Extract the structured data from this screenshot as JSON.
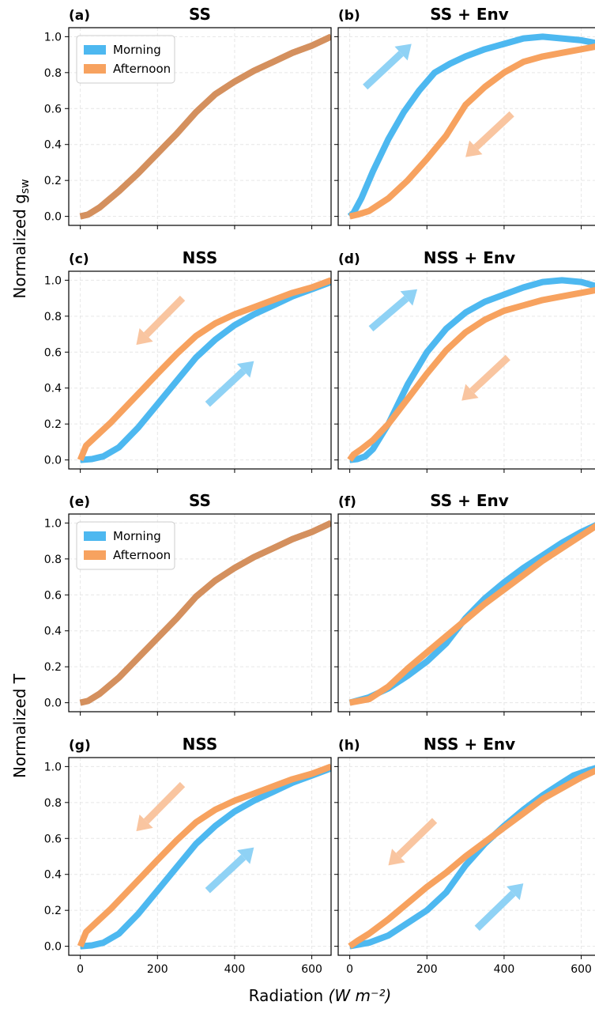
{
  "figure": {
    "xlabel": "Radiation",
    "xlabel_unit": "(W m⁻²)",
    "ylabel_top": "Normalized g",
    "ylabel_top_sub": "sw",
    "ylabel_bottom": "Normalized T"
  },
  "colors": {
    "morning": "#4db8f0",
    "afternoon": "#f7a25f",
    "overlap": "#d4905e",
    "arrow_morning": "#8fd2f5",
    "arrow_afternoon": "#f9c5a0"
  },
  "legend": {
    "morning": "Morning",
    "afternoon": "Afternoon",
    "placement": "upper-left"
  },
  "chart_data": [
    {
      "type": "line",
      "label": "(a)",
      "title": "SS",
      "legend": true,
      "overlap": true,
      "xlim": [
        -30,
        650
      ],
      "ylim": [
        -0.05,
        1.05
      ],
      "xticks": [
        0,
        200,
        400,
        600
      ],
      "yticks": [
        0.0,
        0.2,
        0.4,
        0.6,
        0.8,
        1.0
      ],
      "series": [
        {
          "name": "Morning",
          "x": [
            0,
            20,
            50,
            100,
            150,
            200,
            250,
            300,
            350,
            400,
            450,
            500,
            550,
            600,
            650
          ],
          "y": [
            0,
            0.01,
            0.05,
            0.14,
            0.24,
            0.35,
            0.46,
            0.58,
            0.68,
            0.75,
            0.81,
            0.86,
            0.91,
            0.95,
            1.0
          ]
        },
        {
          "name": "Afternoon",
          "x": [
            0,
            20,
            50,
            100,
            150,
            200,
            250,
            300,
            350,
            400,
            450,
            500,
            550,
            600,
            650
          ],
          "y": [
            0,
            0.01,
            0.05,
            0.14,
            0.24,
            0.35,
            0.46,
            0.58,
            0.68,
            0.75,
            0.81,
            0.86,
            0.91,
            0.95,
            1.0
          ]
        }
      ],
      "arrows": []
    },
    {
      "type": "line",
      "label": "(b)",
      "title": "SS + Env",
      "legend": false,
      "overlap": false,
      "xlim": [
        -30,
        650
      ],
      "ylim": [
        -0.05,
        1.05
      ],
      "xticks": [
        0,
        200,
        400,
        600
      ],
      "yticks": [
        0.0,
        0.2,
        0.4,
        0.6,
        0.8,
        1.0
      ],
      "series": [
        {
          "name": "Morning",
          "x": [
            0,
            10,
            30,
            60,
            100,
            140,
            180,
            220,
            260,
            300,
            350,
            400,
            450,
            500,
            550,
            600,
            650
          ],
          "y": [
            0,
            0.02,
            0.1,
            0.25,
            0.43,
            0.58,
            0.7,
            0.8,
            0.85,
            0.89,
            0.93,
            0.96,
            0.99,
            1.0,
            0.99,
            0.98,
            0.96
          ]
        },
        {
          "name": "Afternoon",
          "x": [
            0,
            20,
            50,
            100,
            150,
            200,
            250,
            300,
            350,
            400,
            450,
            500,
            550,
            600,
            650
          ],
          "y": [
            0,
            0.01,
            0.03,
            0.1,
            0.2,
            0.32,
            0.45,
            0.62,
            0.72,
            0.8,
            0.86,
            0.89,
            0.91,
            0.93,
            0.95
          ]
        }
      ],
      "arrows": [
        {
          "color": "morning",
          "from": [
            40,
            0.72
          ],
          "to": [
            160,
            0.96
          ]
        },
        {
          "color": "afternoon",
          "from": [
            420,
            0.57
          ],
          "to": [
            300,
            0.33
          ]
        }
      ]
    },
    {
      "type": "line",
      "label": "(c)",
      "title": "NSS",
      "legend": false,
      "overlap": false,
      "xlim": [
        -30,
        650
      ],
      "ylim": [
        -0.05,
        1.05
      ],
      "xticks": [
        0,
        200,
        400,
        600
      ],
      "yticks": [
        0.0,
        0.2,
        0.4,
        0.6,
        0.8,
        1.0
      ],
      "series": [
        {
          "name": "Morning",
          "x": [
            0,
            30,
            60,
            100,
            150,
            200,
            250,
            300,
            350,
            400,
            450,
            500,
            550,
            600,
            650
          ],
          "y": [
            0,
            0.005,
            0.02,
            0.07,
            0.18,
            0.31,
            0.44,
            0.57,
            0.67,
            0.75,
            0.81,
            0.86,
            0.91,
            0.95,
            0.99
          ]
        },
        {
          "name": "Afternoon",
          "x": [
            0,
            15,
            40,
            80,
            120,
            160,
            200,
            250,
            300,
            350,
            400,
            450,
            500,
            550,
            600,
            650
          ],
          "y": [
            0,
            0.08,
            0.13,
            0.21,
            0.3,
            0.39,
            0.48,
            0.59,
            0.69,
            0.76,
            0.81,
            0.85,
            0.89,
            0.93,
            0.96,
            1.0
          ]
        }
      ],
      "arrows": [
        {
          "color": "afternoon",
          "from": [
            265,
            0.9
          ],
          "to": [
            145,
            0.64
          ]
        },
        {
          "color": "morning",
          "from": [
            330,
            0.31
          ],
          "to": [
            450,
            0.55
          ]
        }
      ]
    },
    {
      "type": "line",
      "label": "(d)",
      "title": "NSS + Env",
      "legend": false,
      "overlap": false,
      "xlim": [
        -30,
        650
      ],
      "ylim": [
        -0.05,
        1.05
      ],
      "xticks": [
        0,
        200,
        400,
        600
      ],
      "yticks": [
        0.0,
        0.2,
        0.4,
        0.6,
        0.8,
        1.0
      ],
      "series": [
        {
          "name": "Morning",
          "x": [
            0,
            20,
            40,
            60,
            100,
            150,
            200,
            250,
            300,
            350,
            400,
            450,
            500,
            550,
            600,
            650
          ],
          "y": [
            0,
            0.005,
            0.02,
            0.06,
            0.2,
            0.42,
            0.6,
            0.73,
            0.82,
            0.88,
            0.92,
            0.96,
            0.99,
            1.0,
            0.99,
            0.96
          ]
        },
        {
          "name": "Afternoon",
          "x": [
            0,
            10,
            30,
            60,
            100,
            150,
            200,
            250,
            300,
            350,
            400,
            450,
            500,
            550,
            600,
            650
          ],
          "y": [
            0,
            0.03,
            0.06,
            0.11,
            0.2,
            0.34,
            0.48,
            0.61,
            0.71,
            0.78,
            0.83,
            0.86,
            0.89,
            0.91,
            0.93,
            0.95
          ]
        }
      ],
      "arrows": [
        {
          "color": "morning",
          "from": [
            55,
            0.73
          ],
          "to": [
            175,
            0.95
          ]
        },
        {
          "color": "afternoon",
          "from": [
            410,
            0.57
          ],
          "to": [
            290,
            0.33
          ]
        }
      ]
    },
    {
      "type": "line",
      "label": "(e)",
      "title": "SS",
      "legend": true,
      "overlap": true,
      "xlim": [
        -30,
        650
      ],
      "ylim": [
        -0.05,
        1.05
      ],
      "xticks": [
        0,
        200,
        400,
        600
      ],
      "yticks": [
        0.0,
        0.2,
        0.4,
        0.6,
        0.8,
        1.0
      ],
      "series": [
        {
          "name": "Morning",
          "x": [
            0,
            20,
            50,
            100,
            150,
            200,
            250,
            300,
            350,
            400,
            450,
            500,
            550,
            600,
            650
          ],
          "y": [
            0,
            0.01,
            0.05,
            0.14,
            0.25,
            0.36,
            0.47,
            0.59,
            0.68,
            0.75,
            0.81,
            0.86,
            0.91,
            0.95,
            1.0
          ]
        },
        {
          "name": "Afternoon",
          "x": [
            0,
            20,
            50,
            100,
            150,
            200,
            250,
            300,
            350,
            400,
            450,
            500,
            550,
            600,
            650
          ],
          "y": [
            0,
            0.01,
            0.05,
            0.14,
            0.25,
            0.36,
            0.47,
            0.59,
            0.68,
            0.75,
            0.81,
            0.86,
            0.91,
            0.95,
            1.0
          ]
        }
      ],
      "arrows": []
    },
    {
      "type": "line",
      "label": "(f)",
      "title": "SS + Env",
      "legend": false,
      "overlap": false,
      "xlim": [
        -30,
        650
      ],
      "ylim": [
        -0.05,
        1.05
      ],
      "xticks": [
        0,
        200,
        400,
        600
      ],
      "yticks": [
        0.0,
        0.2,
        0.4,
        0.6,
        0.8,
        1.0
      ],
      "series": [
        {
          "name": "Morning",
          "x": [
            0,
            50,
            100,
            150,
            200,
            250,
            300,
            350,
            400,
            450,
            500,
            550,
            600,
            650
          ],
          "y": [
            0,
            0.03,
            0.08,
            0.15,
            0.23,
            0.33,
            0.47,
            0.58,
            0.67,
            0.75,
            0.82,
            0.89,
            0.95,
            1.0
          ]
        },
        {
          "name": "Afternoon",
          "x": [
            0,
            50,
            100,
            150,
            200,
            250,
            300,
            350,
            400,
            450,
            500,
            550,
            600,
            650
          ],
          "y": [
            0,
            0.02,
            0.09,
            0.19,
            0.28,
            0.37,
            0.46,
            0.55,
            0.63,
            0.71,
            0.79,
            0.86,
            0.93,
            1.0
          ]
        }
      ],
      "arrows": []
    },
    {
      "type": "line",
      "label": "(g)",
      "title": "NSS",
      "legend": false,
      "overlap": false,
      "xlim": [
        -30,
        650
      ],
      "ylim": [
        -0.05,
        1.05
      ],
      "xticks": [
        0,
        200,
        400,
        600
      ],
      "yticks": [
        0.0,
        0.2,
        0.4,
        0.6,
        0.8,
        1.0
      ],
      "series": [
        {
          "name": "Morning",
          "x": [
            0,
            30,
            60,
            100,
            150,
            200,
            250,
            300,
            350,
            400,
            450,
            500,
            550,
            600,
            650
          ],
          "y": [
            0,
            0.005,
            0.02,
            0.07,
            0.18,
            0.31,
            0.44,
            0.57,
            0.67,
            0.75,
            0.81,
            0.86,
            0.91,
            0.95,
            0.99
          ]
        },
        {
          "name": "Afternoon",
          "x": [
            0,
            15,
            40,
            80,
            120,
            160,
            200,
            250,
            300,
            350,
            400,
            450,
            500,
            550,
            600,
            650
          ],
          "y": [
            0,
            0.08,
            0.13,
            0.21,
            0.3,
            0.39,
            0.48,
            0.59,
            0.69,
            0.76,
            0.81,
            0.85,
            0.89,
            0.93,
            0.96,
            1.0
          ]
        }
      ],
      "arrows": [
        {
          "color": "afternoon",
          "from": [
            265,
            0.9
          ],
          "to": [
            145,
            0.64
          ]
        },
        {
          "color": "morning",
          "from": [
            330,
            0.31
          ],
          "to": [
            450,
            0.55
          ]
        }
      ]
    },
    {
      "type": "line",
      "label": "(h)",
      "title": "NSS + Env",
      "legend": false,
      "overlap": false,
      "xlim": [
        -30,
        650
      ],
      "ylim": [
        -0.05,
        1.05
      ],
      "xticks": [
        0,
        200,
        400,
        600
      ],
      "yticks": [
        0.0,
        0.2,
        0.4,
        0.6,
        0.8,
        1.0
      ],
      "series": [
        {
          "name": "Morning",
          "x": [
            0,
            50,
            100,
            150,
            200,
            250,
            300,
            350,
            400,
            450,
            500,
            550,
            580,
            620,
            650
          ],
          "y": [
            0,
            0.02,
            0.06,
            0.13,
            0.2,
            0.3,
            0.45,
            0.57,
            0.67,
            0.76,
            0.84,
            0.91,
            0.95,
            0.98,
            1.0
          ]
        },
        {
          "name": "Afternoon",
          "x": [
            0,
            20,
            50,
            100,
            150,
            200,
            250,
            300,
            350,
            400,
            450,
            500,
            550,
            600,
            650
          ],
          "y": [
            0,
            0.03,
            0.07,
            0.15,
            0.24,
            0.33,
            0.41,
            0.5,
            0.58,
            0.66,
            0.74,
            0.82,
            0.88,
            0.94,
            0.99
          ]
        }
      ],
      "arrows": [
        {
          "color": "afternoon",
          "from": [
            220,
            0.7
          ],
          "to": [
            100,
            0.45
          ]
        },
        {
          "color": "morning",
          "from": [
            330,
            0.1
          ],
          "to": [
            450,
            0.35
          ]
        }
      ]
    }
  ]
}
